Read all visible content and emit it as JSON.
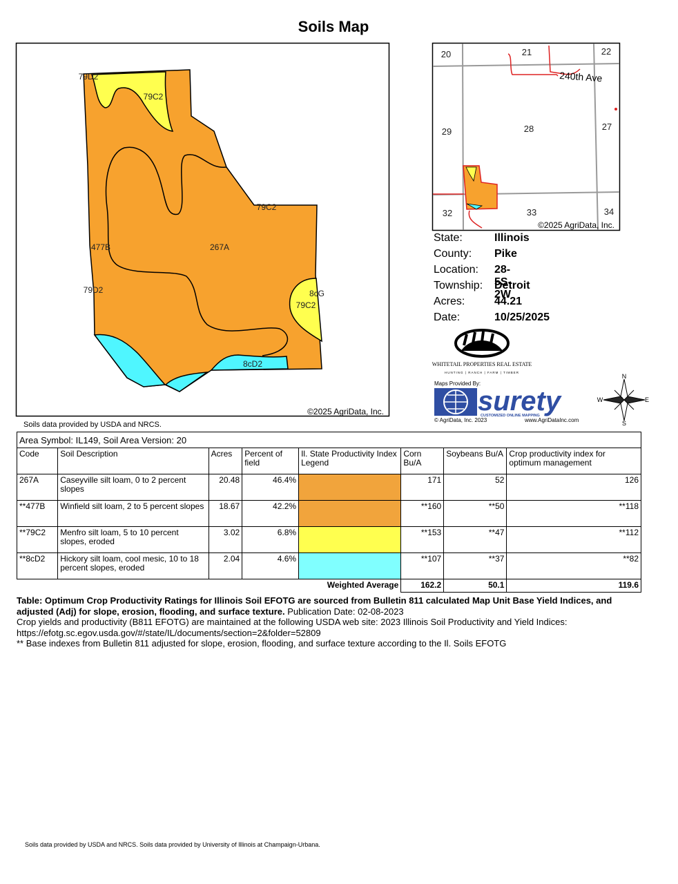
{
  "title": "Soils Map",
  "map": {
    "labels": [
      "79D2",
      "79C2",
      "79C2",
      "477B",
      "267A",
      "79D2",
      "8cG",
      "79C2",
      "8cD2"
    ],
    "copyright": "©2025 AgriData, Inc."
  },
  "source_note": "Soils data provided by USDA and NRCS.",
  "locator": {
    "sections": [
      "20",
      "21",
      "22",
      "29",
      "28",
      "27",
      "32",
      "33",
      "34"
    ],
    "road": "240th Ave",
    "copyright": "©2025 AgriData, Inc."
  },
  "info": [
    {
      "label": "State:",
      "value": "Illinois"
    },
    {
      "label": "County:",
      "value": "Pike"
    },
    {
      "label": "Location:",
      "value": "28-5S-2W"
    },
    {
      "label": "Township:",
      "value": "Detroit"
    },
    {
      "label": "Acres:",
      "value": "44.21"
    },
    {
      "label": "Date:",
      "value": "10/25/2025"
    }
  ],
  "logo": {
    "name": "WHITETAIL PROPERTIES REAL ESTATE",
    "tagline": "HUNTING | RANCH | FARM | TIMBER"
  },
  "surety": {
    "provided_by": "Maps Provided By:",
    "brand": "surety",
    "tagline": "CUSTOMIZED ONLINE MAPPING",
    "copyright": "© AgriData, Inc. 2023",
    "url": "www.AgriDataInc.com"
  },
  "compass": {
    "n": "N",
    "w": "W",
    "e": "E",
    "s": "S"
  },
  "table": {
    "area": "Area Symbol: IL149, Soil Area Version: 20",
    "headers": [
      "Code",
      "Soil Description",
      "Acres",
      "Percent of field",
      "Il. State Productivity Index Legend",
      "Corn Bu/A",
      "Soybeans Bu/A",
      "Crop productivity index for optimum management"
    ],
    "rows": [
      {
        "code": "267A",
        "description": "Caseyville silt loam, 0 to 2 percent slopes",
        "acres": "20.48",
        "percent": "46.4%",
        "legend_color": "#f1a43c",
        "corn": "171",
        "soybeans": "52",
        "cpi": "126"
      },
      {
        "code": "**477B",
        "description": "Winfield silt loam, 2 to 5 percent slopes",
        "acres": "18.67",
        "percent": "42.2%",
        "legend_color": "#f1a43c",
        "corn": "**160",
        "soybeans": "**50",
        "cpi": "**118"
      },
      {
        "code": "**79C2",
        "description": "Menfro silt loam, 5 to 10 percent slopes, eroded",
        "acres": "3.02",
        "percent": "6.8%",
        "legend_color": "#ffff4f",
        "corn": "**153",
        "soybeans": "**47",
        "cpi": "**112"
      },
      {
        "code": "**8cD2",
        "description": "Hickory silt loam, cool mesic, 10 to 18 percent slopes, eroded",
        "acres": "2.04",
        "percent": "4.6%",
        "legend_color": "#80ffff",
        "corn": "**107",
        "soybeans": "**37",
        "cpi": "**82"
      }
    ],
    "weighted": {
      "label": "Weighted Average",
      "corn": "162.2",
      "soybeans": "50.1",
      "cpi": "119.6"
    }
  },
  "notes": {
    "bold": "Table: Optimum Crop Productivity Ratings for Illinois Soil EFOTG are sourced from Bulletin 811 calculated Map Unit Base Yield Indices, and adjusted (Adj) for slope, erosion, flooding, and surface texture.",
    "publication": "Publication Date: 02-08-2023",
    "crop": "Crop yields and productivity (B811 EFOTG) are maintained at the following USDA web site: 2023 Illinois Soil Productivity and Yield Indices:",
    "url": "https://efotg.sc.egov.usda.gov/#/state/IL/documents/section=2&folder=52809",
    "base": "** Base indexes from Bulletin 811 adjusted for slope, erosion, flooding, and surface texture according to the Il. Soils EFOTG"
  },
  "footer": "Soils data provided by USDA and NRCS. Soils data provided by University of Illinois at Champaign-Urbana."
}
